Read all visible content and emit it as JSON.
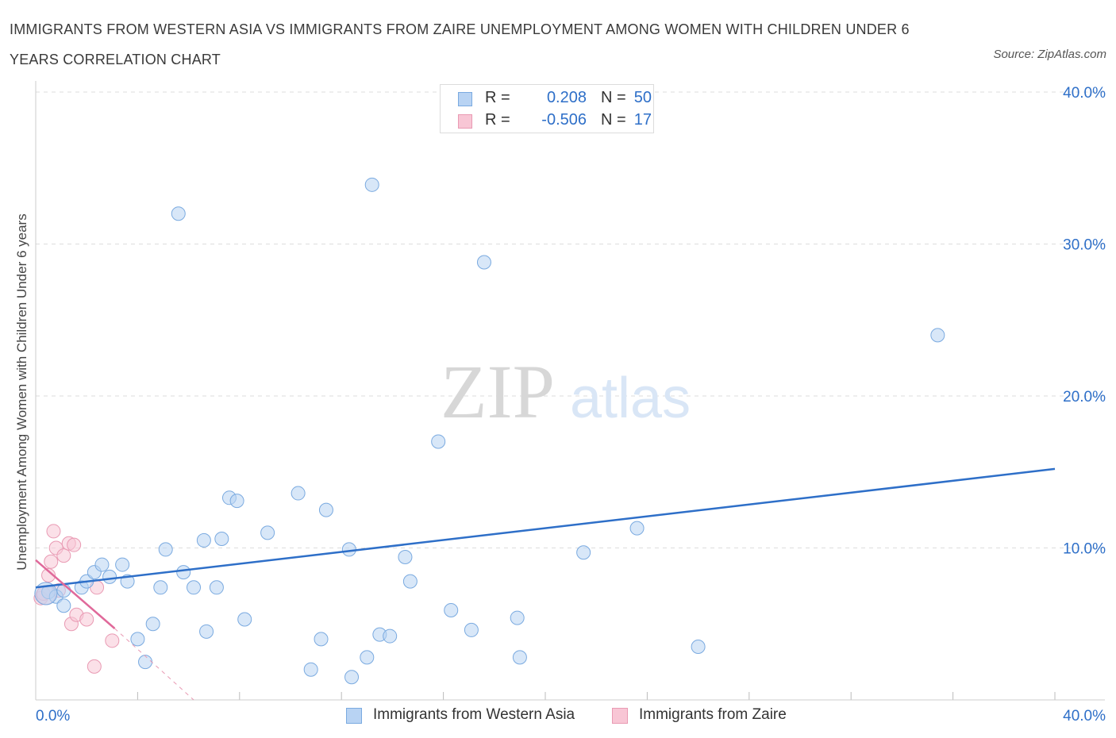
{
  "header": {
    "title": "IMMIGRANTS FROM WESTERN ASIA VS IMMIGRANTS FROM ZAIRE UNEMPLOYMENT AMONG WOMEN WITH CHILDREN UNDER 6 YEARS CORRELATION CHART",
    "source": "Source: ZipAtlas.com"
  },
  "watermark": {
    "zip": "ZIP",
    "atlas": "atlas"
  },
  "stats": {
    "western_asia": {
      "r_label": "R =",
      "r_value": "0.208",
      "n_label": "N =",
      "n_value": "50"
    },
    "zaire": {
      "r_label": "R =",
      "r_value": "-0.506",
      "n_label": "N =",
      "n_value": "17"
    }
  },
  "legend": {
    "western_asia": "Immigrants from Western Asia",
    "zaire": "Immigrants from Zaire"
  },
  "colors": {
    "western_asia_fill": "#b8d3f3",
    "western_asia_stroke": "#7aaae0",
    "western_asia_line": "#2e6fc8",
    "zaire_fill": "#f8c6d5",
    "zaire_stroke": "#e99ab3",
    "zaire_line": "#e0699a",
    "axis_text": "#2e6fc8"
  },
  "chart_data": {
    "type": "scatter",
    "title": "IMMIGRANTS FROM WESTERN ASIA VS IMMIGRANTS FROM ZAIRE UNEMPLOYMENT AMONG WOMEN WITH CHILDREN UNDER 6 YEARS CORRELATION CHART",
    "xlabel": "",
    "ylabel": "Unemployment Among Women with Children Under 6 years",
    "xlim": [
      0,
      40
    ],
    "ylim": [
      0,
      40
    ],
    "x_tick_labels": [
      "0.0%",
      "40.0%"
    ],
    "y_tick_labels": [
      "10.0%",
      "20.0%",
      "30.0%",
      "40.0%"
    ],
    "grid": true,
    "series": [
      {
        "name": "Immigrants from Western Asia",
        "points": [
          [
            0.5,
            7.1
          ],
          [
            0.8,
            6.8
          ],
          [
            1.1,
            6.2
          ],
          [
            1.1,
            7.2
          ],
          [
            1.8,
            7.4
          ],
          [
            2.0,
            7.8
          ],
          [
            2.3,
            8.4
          ],
          [
            2.6,
            8.9
          ],
          [
            2.9,
            8.1
          ],
          [
            3.4,
            8.9
          ],
          [
            3.6,
            7.8
          ],
          [
            4.0,
            4.0
          ],
          [
            4.3,
            2.5
          ],
          [
            4.6,
            5.0
          ],
          [
            4.9,
            7.4
          ],
          [
            5.1,
            9.9
          ],
          [
            5.6,
            32.0
          ],
          [
            5.8,
            8.4
          ],
          [
            6.2,
            7.4
          ],
          [
            6.6,
            10.5
          ],
          [
            6.7,
            4.5
          ],
          [
            7.1,
            7.4
          ],
          [
            7.3,
            10.6
          ],
          [
            7.6,
            13.3
          ],
          [
            7.9,
            13.1
          ],
          [
            8.2,
            5.3
          ],
          [
            9.1,
            11.0
          ],
          [
            10.3,
            13.6
          ],
          [
            10.8,
            2.0
          ],
          [
            11.2,
            4.0
          ],
          [
            11.4,
            12.5
          ],
          [
            12.3,
            9.9
          ],
          [
            12.4,
            1.5
          ],
          [
            13.0,
            2.8
          ],
          [
            13.2,
            33.9
          ],
          [
            13.5,
            4.3
          ],
          [
            13.9,
            4.2
          ],
          [
            14.5,
            9.4
          ],
          [
            14.7,
            7.8
          ],
          [
            15.8,
            17.0
          ],
          [
            16.3,
            5.9
          ],
          [
            17.1,
            4.6
          ],
          [
            17.6,
            28.8
          ],
          [
            18.9,
            5.4
          ],
          [
            19.0,
            2.8
          ],
          [
            21.5,
            9.7
          ],
          [
            23.6,
            11.3
          ],
          [
            26.0,
            3.5
          ],
          [
            35.4,
            24.0
          ],
          [
            0.4,
            7.0
          ]
        ],
        "trend_line": [
          [
            0,
            7.4
          ],
          [
            40,
            15.2
          ]
        ]
      },
      {
        "name": "Immigrants from Zaire",
        "points": [
          [
            0.2,
            6.7
          ],
          [
            0.3,
            7.0
          ],
          [
            0.5,
            8.2
          ],
          [
            0.6,
            9.1
          ],
          [
            0.7,
            11.1
          ],
          [
            0.8,
            10.0
          ],
          [
            0.9,
            7.2
          ],
          [
            1.1,
            9.5
          ],
          [
            1.3,
            10.3
          ],
          [
            1.4,
            5.0
          ],
          [
            1.5,
            10.2
          ],
          [
            1.6,
            5.6
          ],
          [
            2.0,
            5.3
          ],
          [
            2.4,
            7.4
          ],
          [
            2.3,
            2.2
          ],
          [
            3.0,
            3.9
          ],
          [
            0.4,
            6.9
          ]
        ],
        "trend_line": [
          [
            0,
            9.2
          ],
          [
            3.1,
            4.7
          ]
        ],
        "trend_line_extension": [
          [
            3.1,
            4.7
          ],
          [
            6.2,
            0
          ]
        ]
      }
    ]
  }
}
